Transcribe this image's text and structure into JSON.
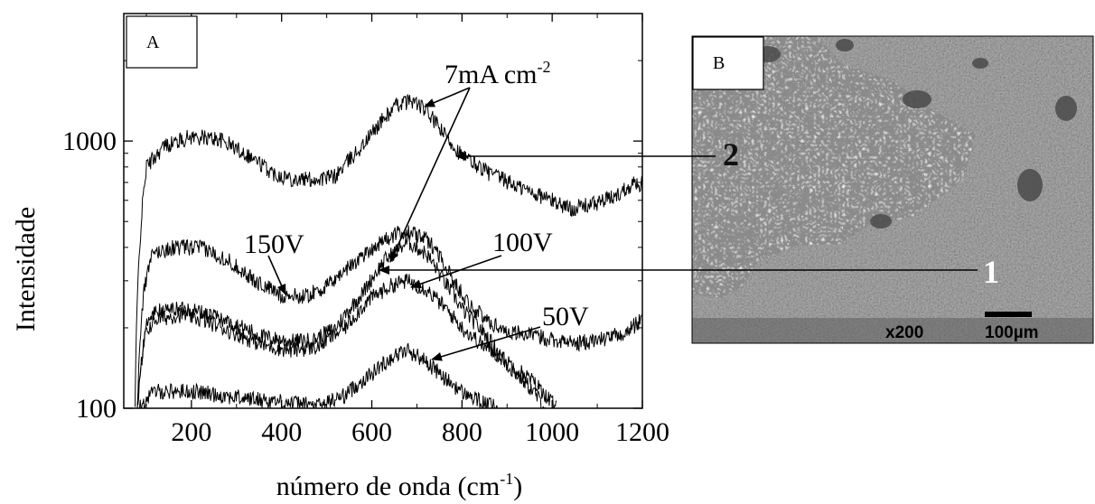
{
  "figure": {
    "panel_a_label": "A",
    "panel_b_label": "B"
  },
  "chart_data": {
    "type": "line",
    "title": "",
    "xlabel": "número de onda (cm",
    "xlabel_sup": "-1",
    "xlabel_close": ")",
    "ylabel": "Intensidade",
    "xlim": [
      50,
      1200
    ],
    "ylim": [
      100,
      3000
    ],
    "yscale": "log",
    "x_ticks": [
      "200",
      "400",
      "600",
      "800",
      "1000",
      "1200"
    ],
    "y_ticks": [
      "100",
      "1000"
    ],
    "grid": false,
    "series": [
      {
        "name": "7mA cm-2",
        "points": [
          [
            75,
            100
          ],
          [
            85,
            400
          ],
          [
            100,
            800
          ],
          [
            140,
            960
          ],
          [
            200,
            1040
          ],
          [
            260,
            1020
          ],
          [
            320,
            900
          ],
          [
            380,
            760
          ],
          [
            430,
            720
          ],
          [
            480,
            720
          ],
          [
            520,
            740
          ],
          [
            580,
            960
          ],
          [
            620,
            1180
          ],
          [
            660,
            1380
          ],
          [
            690,
            1420
          ],
          [
            720,
            1300
          ],
          [
            760,
            1060
          ],
          [
            800,
            880
          ],
          [
            860,
            760
          ],
          [
            920,
            680
          ],
          [
            980,
            620
          ],
          [
            1040,
            560
          ],
          [
            1090,
            580
          ],
          [
            1140,
            620
          ],
          [
            1180,
            700
          ],
          [
            1200,
            690
          ]
        ]
      },
      {
        "name": "150V",
        "points": [
          [
            80,
            100
          ],
          [
            95,
            280
          ],
          [
            115,
            380
          ],
          [
            160,
            400
          ],
          [
            220,
            400
          ],
          [
            280,
            360
          ],
          [
            340,
            300
          ],
          [
            400,
            265
          ],
          [
            450,
            262
          ],
          [
            500,
            285
          ],
          [
            560,
            350
          ],
          [
            620,
            420
          ],
          [
            670,
            460
          ],
          [
            710,
            440
          ],
          [
            740,
            400
          ],
          [
            780,
            300
          ],
          [
            820,
            240
          ],
          [
            860,
            210
          ],
          [
            900,
            195
          ],
          [
            950,
            188
          ],
          [
            1000,
            182
          ],
          [
            1050,
            175
          ],
          [
            1100,
            180
          ],
          [
            1160,
            190
          ],
          [
            1200,
            215
          ]
        ]
      },
      {
        "name": "100V",
        "points": [
          [
            80,
            100
          ],
          [
            98,
            200
          ],
          [
            118,
            230
          ],
          [
            180,
            238
          ],
          [
            240,
            225
          ],
          [
            300,
            205
          ],
          [
            360,
            185
          ],
          [
            420,
            178
          ],
          [
            470,
            180
          ],
          [
            520,
            200
          ],
          [
            580,
            270
          ],
          [
            630,
            360
          ],
          [
            680,
            420
          ],
          [
            720,
            380
          ],
          [
            760,
            300
          ],
          [
            800,
            235
          ],
          [
            850,
            190
          ],
          [
            900,
            145
          ],
          [
            950,
            120
          ],
          [
            985,
            100
          ]
        ]
      },
      {
        "name": "",
        "points": [
          [
            80,
            100
          ],
          [
            100,
            195
          ],
          [
            120,
            215
          ],
          [
            180,
            225
          ],
          [
            240,
            210
          ],
          [
            300,
            190
          ],
          [
            360,
            172
          ],
          [
            420,
            165
          ],
          [
            480,
            170
          ],
          [
            540,
            200
          ],
          [
            600,
            260
          ],
          [
            650,
            292
          ],
          [
            680,
            300
          ],
          [
            720,
            280
          ],
          [
            760,
            240
          ],
          [
            800,
            200
          ],
          [
            850,
            170
          ],
          [
            900,
            150
          ],
          [
            960,
            125
          ],
          [
            1010,
            100
          ]
        ]
      },
      {
        "name": "50V",
        "points": [
          [
            85,
            100
          ],
          [
            100,
            108
          ],
          [
            120,
            116
          ],
          [
            200,
            116
          ],
          [
            300,
            110
          ],
          [
            400,
            106
          ],
          [
            480,
            102
          ],
          [
            540,
            112
          ],
          [
            600,
            135
          ],
          [
            650,
            158
          ],
          [
            680,
            165
          ],
          [
            720,
            150
          ],
          [
            760,
            130
          ],
          [
            800,
            115
          ],
          [
            850,
            104
          ],
          [
            880,
            100
          ]
        ]
      }
    ],
    "annotations": [
      {
        "text": "7mA cm",
        "sup": "-2"
      },
      {
        "text": "150V"
      },
      {
        "text": "100V"
      },
      {
        "text": "50V"
      }
    ]
  },
  "micrograph": {
    "marker_1": "1",
    "marker_2": "2",
    "magnification": "x200",
    "scale_bar": "100µm"
  }
}
